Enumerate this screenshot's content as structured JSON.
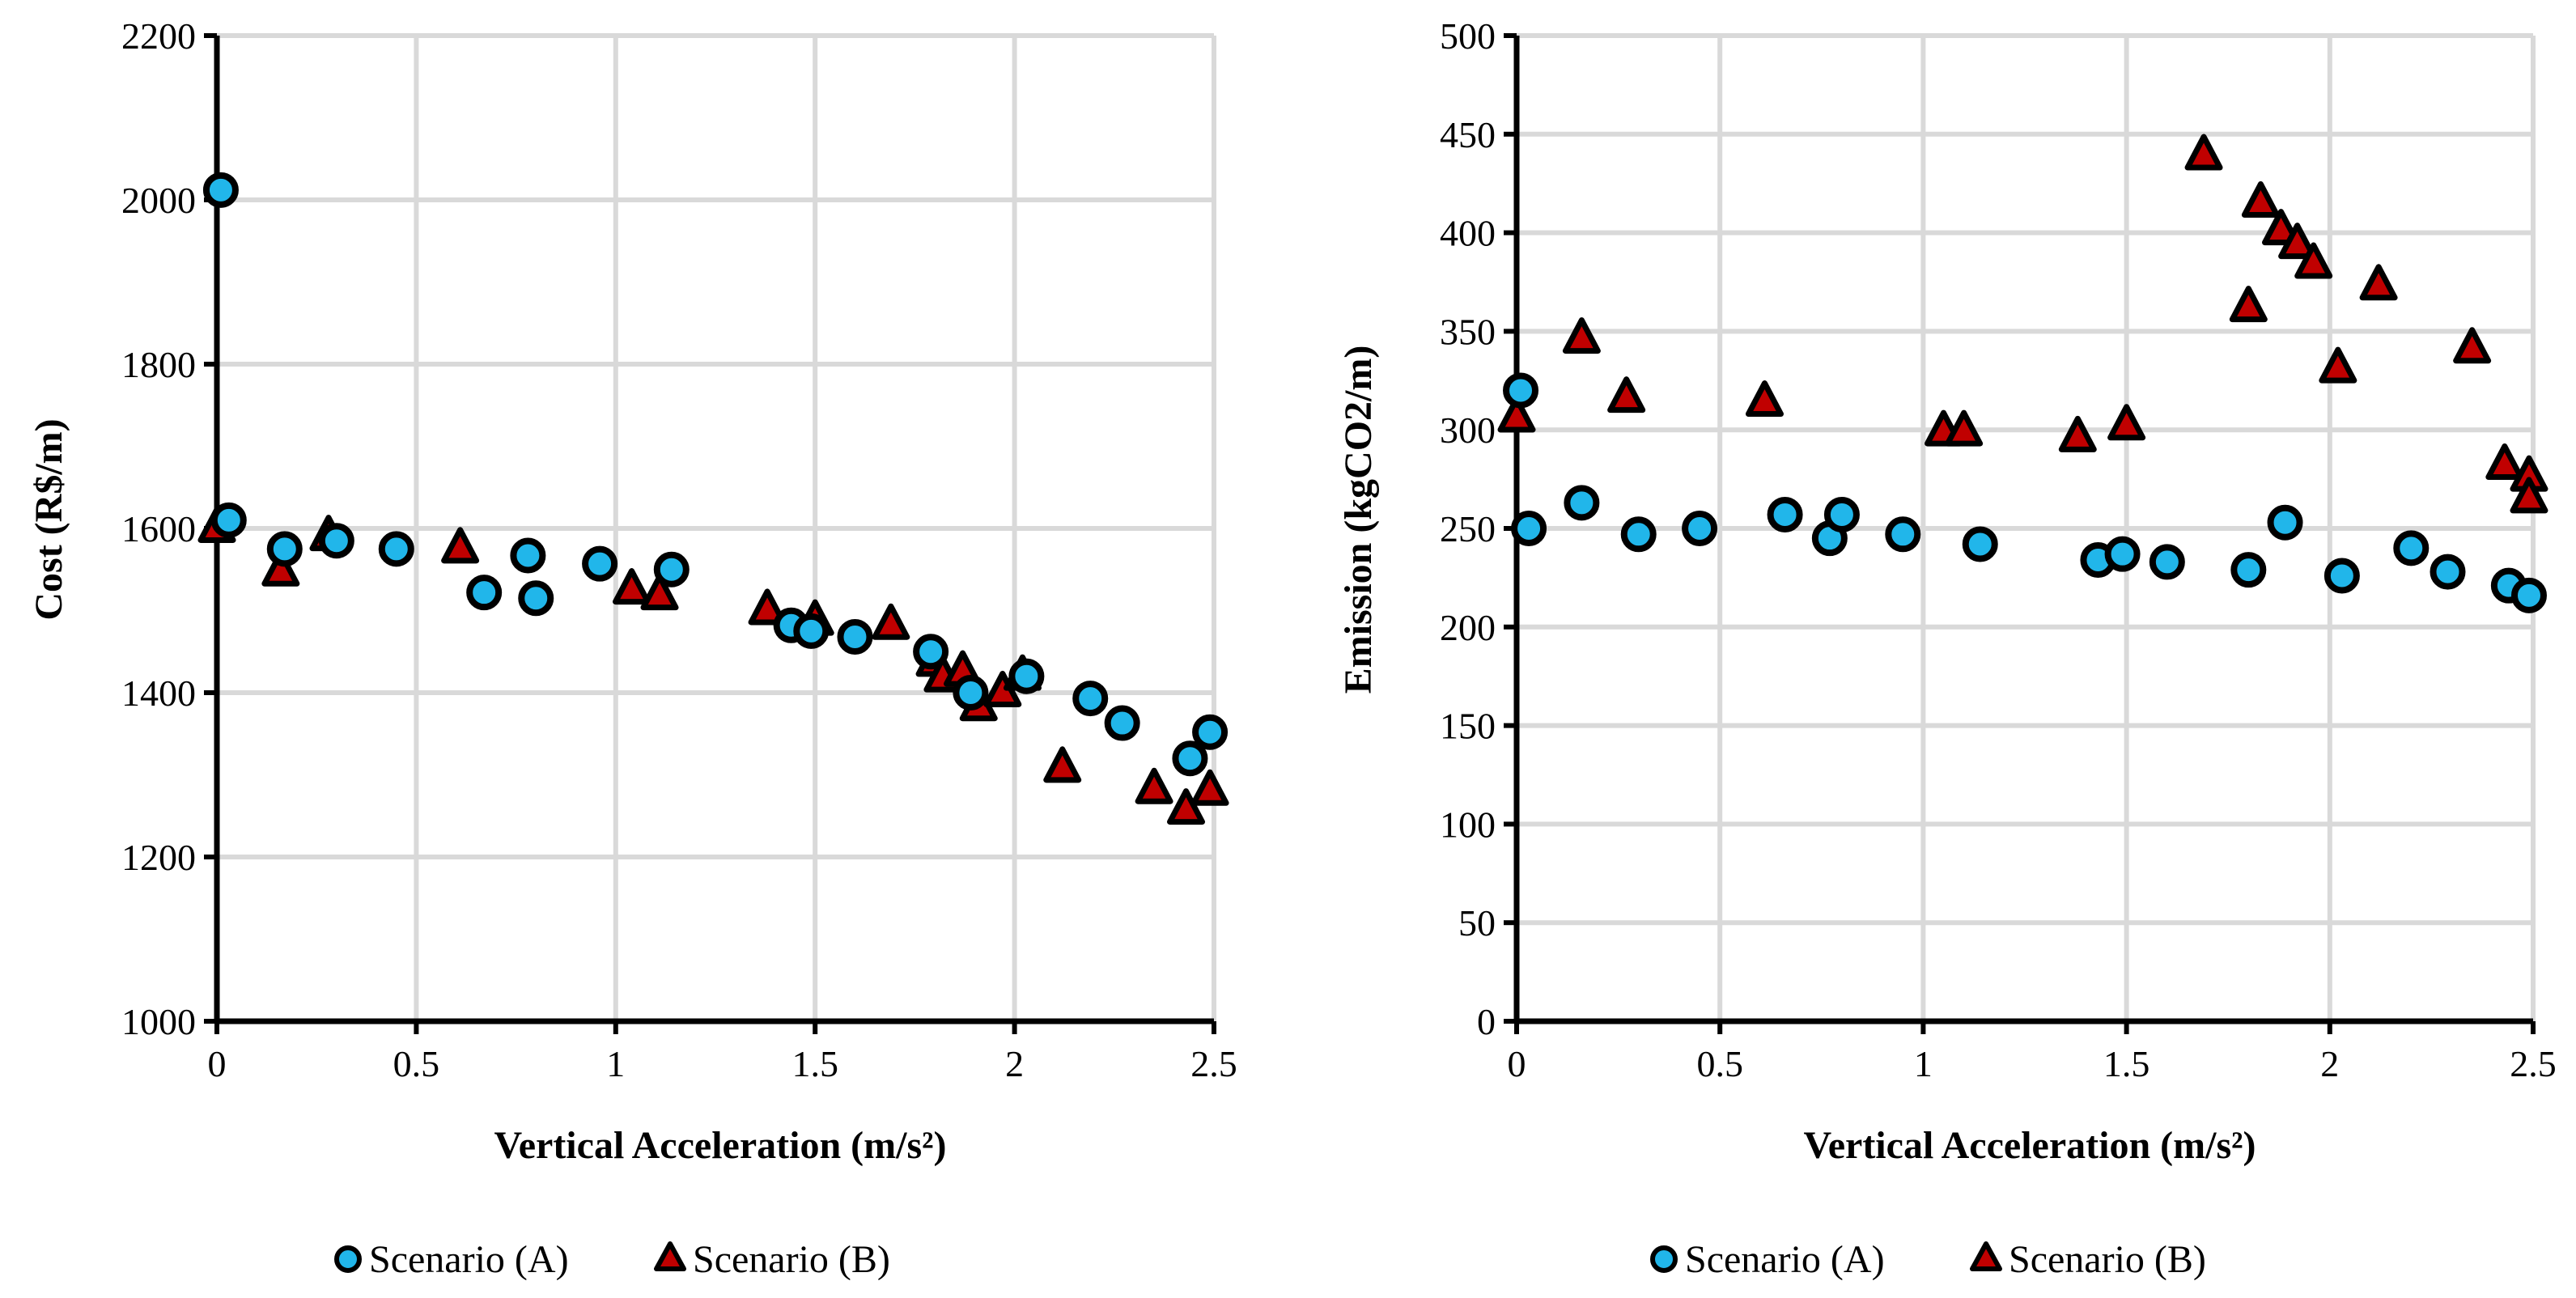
{
  "colors": {
    "scenario_a": "#21B6EA",
    "scenario_b": "#C00000",
    "outline": "#000000",
    "grid": "#D9D9D9"
  },
  "chart_data": [
    {
      "type": "scatter",
      "title": "",
      "xlabel": "Vertical Acceleration (m/s²)",
      "ylabel": "Cost (R$/m)",
      "xlim": [
        0,
        2.5
      ],
      "ylim": [
        1000,
        2200
      ],
      "xticks": [
        0,
        0.5,
        1,
        1.5,
        2,
        2.5
      ],
      "xtick_labels": [
        "0",
        "0.5",
        "1",
        "1.5",
        "2",
        "2.5"
      ],
      "yticks": [
        1000,
        1200,
        1400,
        1600,
        1800,
        2000,
        2200
      ],
      "ytick_labels": [
        "1000",
        "1200",
        "1400",
        "1600",
        "1800",
        "2000",
        "2200"
      ],
      "legend": [
        "Scenario (A)",
        "Scenario (B)"
      ],
      "series": [
        {
          "name": "Scenario (A)",
          "marker": "circle",
          "x": [
            0.01,
            0.03,
            0.17,
            0.3,
            0.45,
            0.78,
            0.8,
            0.67,
            0.96,
            1.14,
            1.44,
            1.49,
            1.6,
            1.79,
            1.89,
            2.03,
            2.19,
            2.27,
            2.44,
            2.49
          ],
          "y": [
            2012,
            1610,
            1575,
            1585,
            1575,
            1567,
            1515,
            1522,
            1557,
            1550,
            1482,
            1475,
            1468,
            1450,
            1400,
            1420,
            1393,
            1363,
            1320,
            1352
          ]
        },
        {
          "name": "Scenario (B)",
          "marker": "triangle",
          "x": [
            0.0,
            0.16,
            0.28,
            0.61,
            1.04,
            1.11,
            1.38,
            1.5,
            1.69,
            1.8,
            1.82,
            1.87,
            1.91,
            1.97,
            2.02,
            2.12,
            2.35,
            2.43,
            2.49
          ],
          "y": [
            1600,
            1547,
            1590,
            1575,
            1525,
            1518,
            1500,
            1487,
            1482,
            1437,
            1418,
            1425,
            1383,
            1400,
            1420,
            1308,
            1282,
            1257,
            1280
          ]
        }
      ]
    },
    {
      "type": "scatter",
      "title": "",
      "xlabel": "Vertical Acceleration (m/s²)",
      "ylabel": "Emission (kgCO2/m)",
      "xlim": [
        0,
        2.5
      ],
      "ylim": [
        0,
        500
      ],
      "xticks": [
        0,
        0.5,
        1,
        1.5,
        2,
        2.5
      ],
      "xtick_labels": [
        "0",
        "0.5",
        "1",
        "1.5",
        "2",
        "2.5"
      ],
      "yticks": [
        0,
        50,
        100,
        150,
        200,
        250,
        300,
        350,
        400,
        450,
        500
      ],
      "ytick_labels": [
        "0",
        "50",
        "100",
        "150",
        "200",
        "250",
        "300",
        "350",
        "400",
        "450",
        "500"
      ],
      "legend": [
        "Scenario (A)",
        "Scenario (B)"
      ],
      "series": [
        {
          "name": "Scenario (A)",
          "marker": "circle",
          "x": [
            0.01,
            0.03,
            0.16,
            0.3,
            0.45,
            0.66,
            0.77,
            0.8,
            0.95,
            1.14,
            1.43,
            1.49,
            1.6,
            1.8,
            1.89,
            2.03,
            2.2,
            2.29,
            2.44,
            2.49
          ],
          "y": [
            320,
            250,
            263,
            247,
            250,
            257,
            245,
            257,
            247,
            242,
            234,
            237,
            233,
            229,
            253,
            226,
            240,
            228,
            221,
            216
          ]
        },
        {
          "name": "Scenario (B)",
          "marker": "triangle",
          "x": [
            0.0,
            0.16,
            0.27,
            0.61,
            1.05,
            1.1,
            1.38,
            1.5,
            1.69,
            1.8,
            1.83,
            1.88,
            1.92,
            1.96,
            2.02,
            2.12,
            2.35,
            2.43,
            2.49,
            2.49
          ],
          "y": [
            306,
            346,
            316,
            314,
            299,
            299,
            296,
            302,
            439,
            362,
            415,
            401,
            394,
            384,
            331,
            373,
            341,
            282,
            276,
            265
          ]
        }
      ]
    }
  ]
}
